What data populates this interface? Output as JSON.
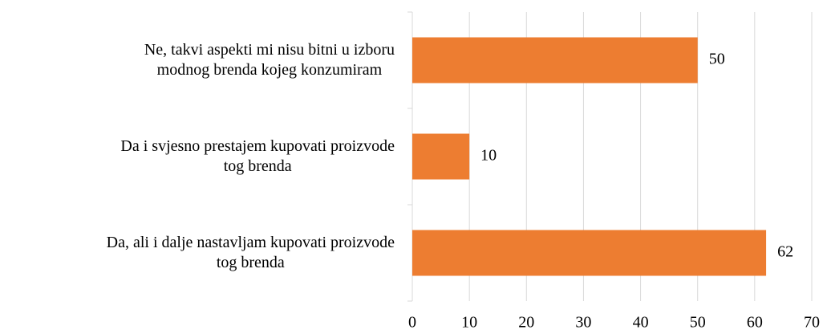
{
  "chart_data": {
    "type": "bar",
    "orientation": "horizontal",
    "categories": [
      "Ne, takvi aspekti mi nisu bitni u izboru\nmodnog brenda kojeg konzumiram",
      "Da i svjesno prestajem kupovati proizvode\ntog brenda",
      "Da, ali i dalje nastavljam kupovati proizvode\ntog brenda"
    ],
    "values": [
      50,
      10,
      62
    ],
    "color": "#ed7d31",
    "xlim": [
      0,
      70
    ],
    "xticks": [
      0,
      10,
      20,
      30,
      40,
      50,
      60,
      70
    ],
    "grid": true
  }
}
